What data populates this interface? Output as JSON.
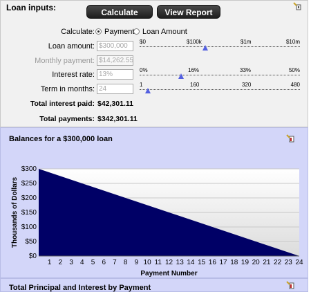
{
  "inputs": {
    "title": "Loan inputs:",
    "calculate_button": "Calculate",
    "view_report_button": "View Report",
    "calculate_label": "Calculate:",
    "radio_payment": "Payment",
    "radio_loan_amount": "Loan Amount",
    "loan_amount_label": "Loan amount:",
    "loan_amount_value": "$300,000",
    "monthly_payment_label": "Monthly payment:",
    "monthly_payment_value": "$14,262.55",
    "interest_rate_label": "Interest rate:",
    "interest_rate_value": "13%",
    "term_label": "Term in months:",
    "term_value": "24",
    "total_interest_label": "Total interest paid:",
    "total_interest_value": "$42,301.11",
    "total_payments_label": "Total payments:",
    "total_payments_value": "$342,301.11",
    "sliders": {
      "loan_amount": {
        "ticks": [
          "$0",
          "$100k",
          "$1m",
          "$10m"
        ],
        "level": 0.41
      },
      "interest_rate": {
        "ticks": [
          "0%",
          "16%",
          "33%",
          "50%"
        ],
        "level": 0.26
      },
      "term": {
        "ticks": [
          "1",
          "160",
          "320",
          "480"
        ],
        "level": 0.05
      }
    }
  },
  "chart_panel": {
    "title": "Balances for a $300,000 loan"
  },
  "chart_data": {
    "type": "area",
    "title": "Balances for a $300,000 loan",
    "xlabel": "Payment Number",
    "ylabel": "Thousands of Dollars",
    "x": [
      0,
      24
    ],
    "y": [
      300,
      0
    ],
    "xticks": [
      "1",
      "2",
      "3",
      "4",
      "5",
      "6",
      "7",
      "8",
      "9",
      "10",
      "11",
      "12",
      "13",
      "14",
      "15",
      "16",
      "17",
      "18",
      "19",
      "20",
      "21",
      "22",
      "23",
      "24"
    ],
    "yticks": [
      "$300",
      "$250",
      "$200",
      "$150",
      "$100",
      "$50",
      "$0"
    ],
    "ylim": [
      0,
      300
    ],
    "xlim": [
      0,
      24
    ],
    "grid": true,
    "fill_color": "#000066"
  },
  "next_panel": {
    "title": "Total Principal and Interest by Payment"
  },
  "colors": {
    "accent": "#5460e0",
    "panel": "#d3d6f9",
    "area": "#000066"
  }
}
